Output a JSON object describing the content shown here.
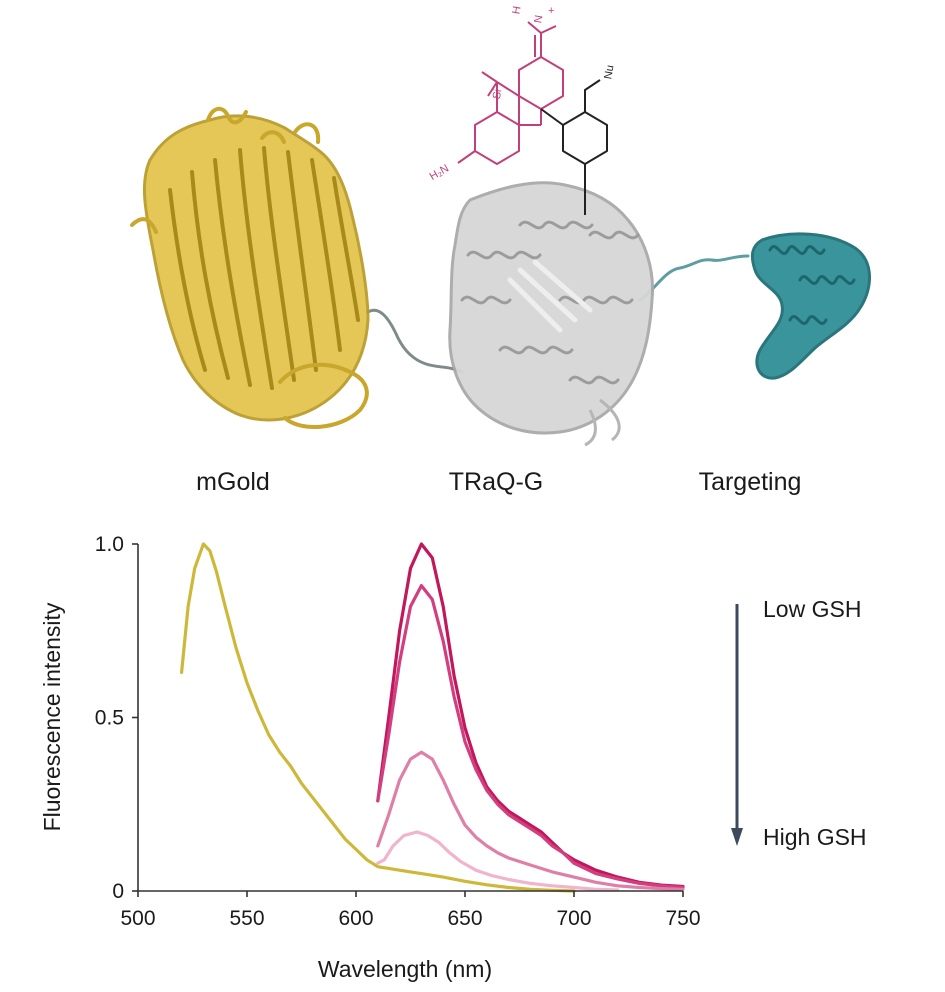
{
  "diagram": {
    "proteins": [
      {
        "label": "mGold",
        "color": "#e3c34a"
      },
      {
        "label": "TRaQ-G",
        "color": "#d6d6d6"
      },
      {
        "label": "Targeting",
        "color": "#2f8f96"
      }
    ],
    "molecule": {
      "atom_labels": [
        "H₂N",
        "Si",
        "N",
        "H",
        "+",
        "Nu"
      ],
      "dye_color": "#c2407a",
      "linker_color": "#222222"
    }
  },
  "chart_data": {
    "type": "line",
    "xlabel": "Wavelength (nm)",
    "ylabel": "Fluorescence intensity",
    "xlim": [
      500,
      750
    ],
    "ylim": [
      0,
      1.0
    ],
    "x_ticks": [
      "500",
      "550",
      "600",
      "650",
      "700",
      "750"
    ],
    "y_ticks": [
      "0",
      "0.5",
      "1.0"
    ],
    "grid": false,
    "annotation": {
      "top": "Low GSH",
      "bottom": "High GSH",
      "arrow_color": "#3d4a5c"
    },
    "series": [
      {
        "color": "#cdb83a",
        "points": [
          [
            520,
            0.63
          ],
          [
            523,
            0.82
          ],
          [
            526,
            0.93
          ],
          [
            530,
            1.0
          ],
          [
            533,
            0.98
          ],
          [
            536,
            0.92
          ],
          [
            540,
            0.82
          ],
          [
            545,
            0.7
          ],
          [
            550,
            0.6
          ],
          [
            555,
            0.52
          ],
          [
            560,
            0.45
          ],
          [
            565,
            0.4
          ],
          [
            570,
            0.36
          ],
          [
            575,
            0.31
          ],
          [
            580,
            0.27
          ],
          [
            585,
            0.23
          ],
          [
            590,
            0.19
          ],
          [
            595,
            0.15
          ],
          [
            600,
            0.12
          ],
          [
            605,
            0.09
          ],
          [
            610,
            0.07
          ],
          [
            615,
            0.065
          ],
          [
            620,
            0.06
          ],
          [
            625,
            0.055
          ],
          [
            630,
            0.05
          ],
          [
            640,
            0.04
          ],
          [
            650,
            0.028
          ],
          [
            660,
            0.018
          ],
          [
            670,
            0.01
          ],
          [
            680,
            0.005
          ],
          [
            690,
            0.002
          ],
          [
            700,
            0.0
          ]
        ]
      },
      {
        "color": "#c2185b",
        "points": [
          [
            610,
            0.26
          ],
          [
            615,
            0.5
          ],
          [
            620,
            0.75
          ],
          [
            625,
            0.93
          ],
          [
            630,
            1.0
          ],
          [
            635,
            0.96
          ],
          [
            640,
            0.82
          ],
          [
            645,
            0.62
          ],
          [
            650,
            0.47
          ],
          [
            655,
            0.37
          ],
          [
            660,
            0.3
          ],
          [
            665,
            0.26
          ],
          [
            670,
            0.23
          ],
          [
            675,
            0.21
          ],
          [
            680,
            0.19
          ],
          [
            685,
            0.17
          ],
          [
            690,
            0.14
          ],
          [
            695,
            0.11
          ],
          [
            700,
            0.09
          ],
          [
            710,
            0.06
          ],
          [
            720,
            0.04
          ],
          [
            730,
            0.025
          ],
          [
            740,
            0.017
          ],
          [
            750,
            0.013
          ]
        ]
      },
      {
        "color": "#d23f80",
        "points": [
          [
            610,
            0.26
          ],
          [
            615,
            0.45
          ],
          [
            620,
            0.66
          ],
          [
            625,
            0.82
          ],
          [
            630,
            0.88
          ],
          [
            635,
            0.84
          ],
          [
            640,
            0.72
          ],
          [
            645,
            0.56
          ],
          [
            650,
            0.43
          ],
          [
            655,
            0.35
          ],
          [
            660,
            0.29
          ],
          [
            665,
            0.25
          ],
          [
            670,
            0.22
          ],
          [
            675,
            0.2
          ],
          [
            680,
            0.18
          ],
          [
            685,
            0.16
          ],
          [
            690,
            0.13
          ],
          [
            695,
            0.11
          ],
          [
            700,
            0.08
          ],
          [
            710,
            0.05
          ],
          [
            720,
            0.035
          ],
          [
            730,
            0.022
          ],
          [
            740,
            0.015
          ],
          [
            750,
            0.01
          ]
        ]
      },
      {
        "color": "#de7fa8",
        "points": [
          [
            610,
            0.13
          ],
          [
            615,
            0.22
          ],
          [
            620,
            0.32
          ],
          [
            625,
            0.38
          ],
          [
            630,
            0.4
          ],
          [
            635,
            0.38
          ],
          [
            640,
            0.32
          ],
          [
            645,
            0.25
          ],
          [
            650,
            0.19
          ],
          [
            655,
            0.155
          ],
          [
            660,
            0.13
          ],
          [
            665,
            0.11
          ],
          [
            670,
            0.095
          ],
          [
            675,
            0.085
          ],
          [
            680,
            0.075
          ],
          [
            690,
            0.055
          ],
          [
            700,
            0.04
          ],
          [
            710,
            0.025
          ],
          [
            720,
            0.015
          ],
          [
            730,
            0.01
          ],
          [
            740,
            0.007
          ],
          [
            750,
            0.005
          ]
        ]
      },
      {
        "color": "#f0b4cc",
        "points": [
          [
            610,
            0.08
          ],
          [
            613,
            0.09
          ],
          [
            617,
            0.13
          ],
          [
            622,
            0.16
          ],
          [
            628,
            0.17
          ],
          [
            633,
            0.16
          ],
          [
            638,
            0.14
          ],
          [
            643,
            0.11
          ],
          [
            648,
            0.085
          ],
          [
            655,
            0.06
          ],
          [
            662,
            0.045
          ],
          [
            670,
            0.033
          ],
          [
            680,
            0.022
          ],
          [
            690,
            0.015
          ],
          [
            700,
            0.01
          ],
          [
            710,
            0.005
          ],
          [
            720,
            0.003
          ]
        ]
      }
    ]
  }
}
